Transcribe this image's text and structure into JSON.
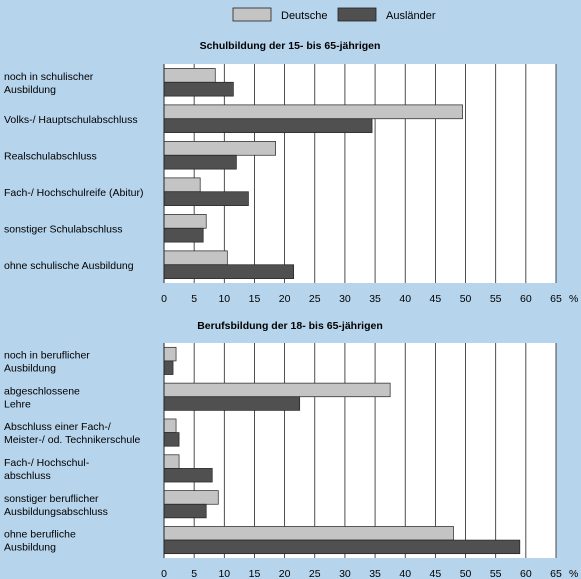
{
  "legend": {
    "deutsche": "Deutsche",
    "auslaender": "Ausländer"
  },
  "colors": {
    "background": "#b6d4ec",
    "plot_background": "#ffffff",
    "deutsche": "#c4c4c4",
    "auslaender": "#505050",
    "grid": "#222222"
  },
  "chart_data": [
    {
      "type": "bar",
      "orientation": "horizontal",
      "title": "Schulbildung der 15- bis 65-jährigen",
      "unit": "%",
      "xlim": [
        0,
        65
      ],
      "ticks": [
        0,
        5,
        10,
        15,
        20,
        25,
        30,
        35,
        40,
        45,
        50,
        55,
        60,
        65
      ],
      "grid": true,
      "legend_position": "top",
      "categories": [
        [
          "noch in schulischer",
          "Ausbildung"
        ],
        [
          "Volks-/ Hauptschulabschluss"
        ],
        [
          "Realschulabschluss"
        ],
        [
          "Fach-/ Hochschulreife (Abitur)"
        ],
        [
          "sonstiger Schulabschluss"
        ],
        [
          "ohne schulische Ausbildung"
        ]
      ],
      "series": [
        {
          "name": "Deutsche",
          "values": [
            8.5,
            49.5,
            18.5,
            6,
            7,
            10.5
          ]
        },
        {
          "name": "Ausländer",
          "values": [
            11.5,
            34.5,
            12,
            14,
            6.5,
            21.5
          ]
        }
      ]
    },
    {
      "type": "bar",
      "orientation": "horizontal",
      "title": "Berufsbildung der 18- bis 65-jährigen",
      "unit": "%",
      "xlim": [
        0,
        65
      ],
      "ticks": [
        0,
        5,
        10,
        15,
        20,
        25,
        30,
        35,
        40,
        45,
        50,
        55,
        60,
        65
      ],
      "grid": true,
      "categories": [
        [
          "noch in beruflicher",
          "Ausbildung"
        ],
        [
          "abgeschlossene",
          "Lehre"
        ],
        [
          "Abschluss einer Fach-/",
          "Meister-/ od. Technikerschule"
        ],
        [
          "Fach-/ Hochschul-",
          "abschluss"
        ],
        [
          "sonstiger beruflicher",
          "Ausbildungsabschluss"
        ],
        [
          "ohne berufliche",
          "Ausbildung"
        ]
      ],
      "series": [
        {
          "name": "Deutsche",
          "values": [
            2,
            37.5,
            2,
            2.5,
            9,
            48
          ]
        },
        {
          "name": "Ausländer",
          "values": [
            1.5,
            22.5,
            2.5,
            8,
            7,
            59
          ]
        }
      ]
    }
  ]
}
